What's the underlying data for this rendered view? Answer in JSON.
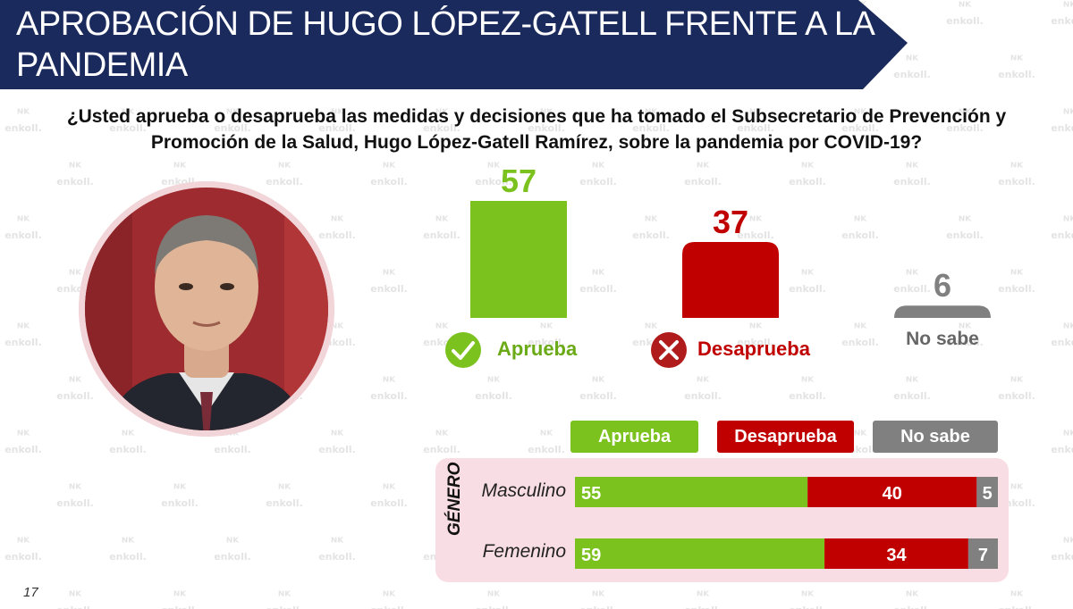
{
  "header": {
    "title": "APROBACIÓN DE HUGO LÓPEZ-GATELL FRENTE A LA PANDEMIA"
  },
  "question": "¿Usted aprueba o desaprueba las medidas y decisiones que ha tomado el Subsecretario de Prevención y Promoción de la Salud, Hugo López-Gatell Ramírez, sobre la pandemia por COVID-19?",
  "watermark": "enkoll.",
  "colors": {
    "header_bg": "#1b2a5c",
    "aprueba": "#7cc21e",
    "desaprueba": "#c00000",
    "no_sabe": "#808080",
    "panel_bg": "#f9dde4"
  },
  "icons": {
    "aprueba": "checkmark-icon",
    "desaprueba": "x-icon"
  },
  "chart_data": [
    {
      "type": "bar",
      "categories": [
        "Aprueba",
        "Desaprueba",
        "No sabe"
      ],
      "values": [
        57,
        37,
        6
      ],
      "ylim": [
        0,
        57
      ]
    },
    {
      "type": "bar",
      "orientation": "horizontal",
      "stacked": true,
      "group_label": "GÉNERO",
      "categories": [
        "Masculino",
        "Femenino"
      ],
      "series": [
        {
          "name": "Aprueba",
          "values": [
            55,
            59
          ]
        },
        {
          "name": "Desaprueba",
          "values": [
            40,
            34
          ]
        },
        {
          "name": "No sabe",
          "values": [
            5,
            7
          ]
        }
      ],
      "xlim": [
        0,
        100
      ]
    }
  ],
  "page_number": "17"
}
